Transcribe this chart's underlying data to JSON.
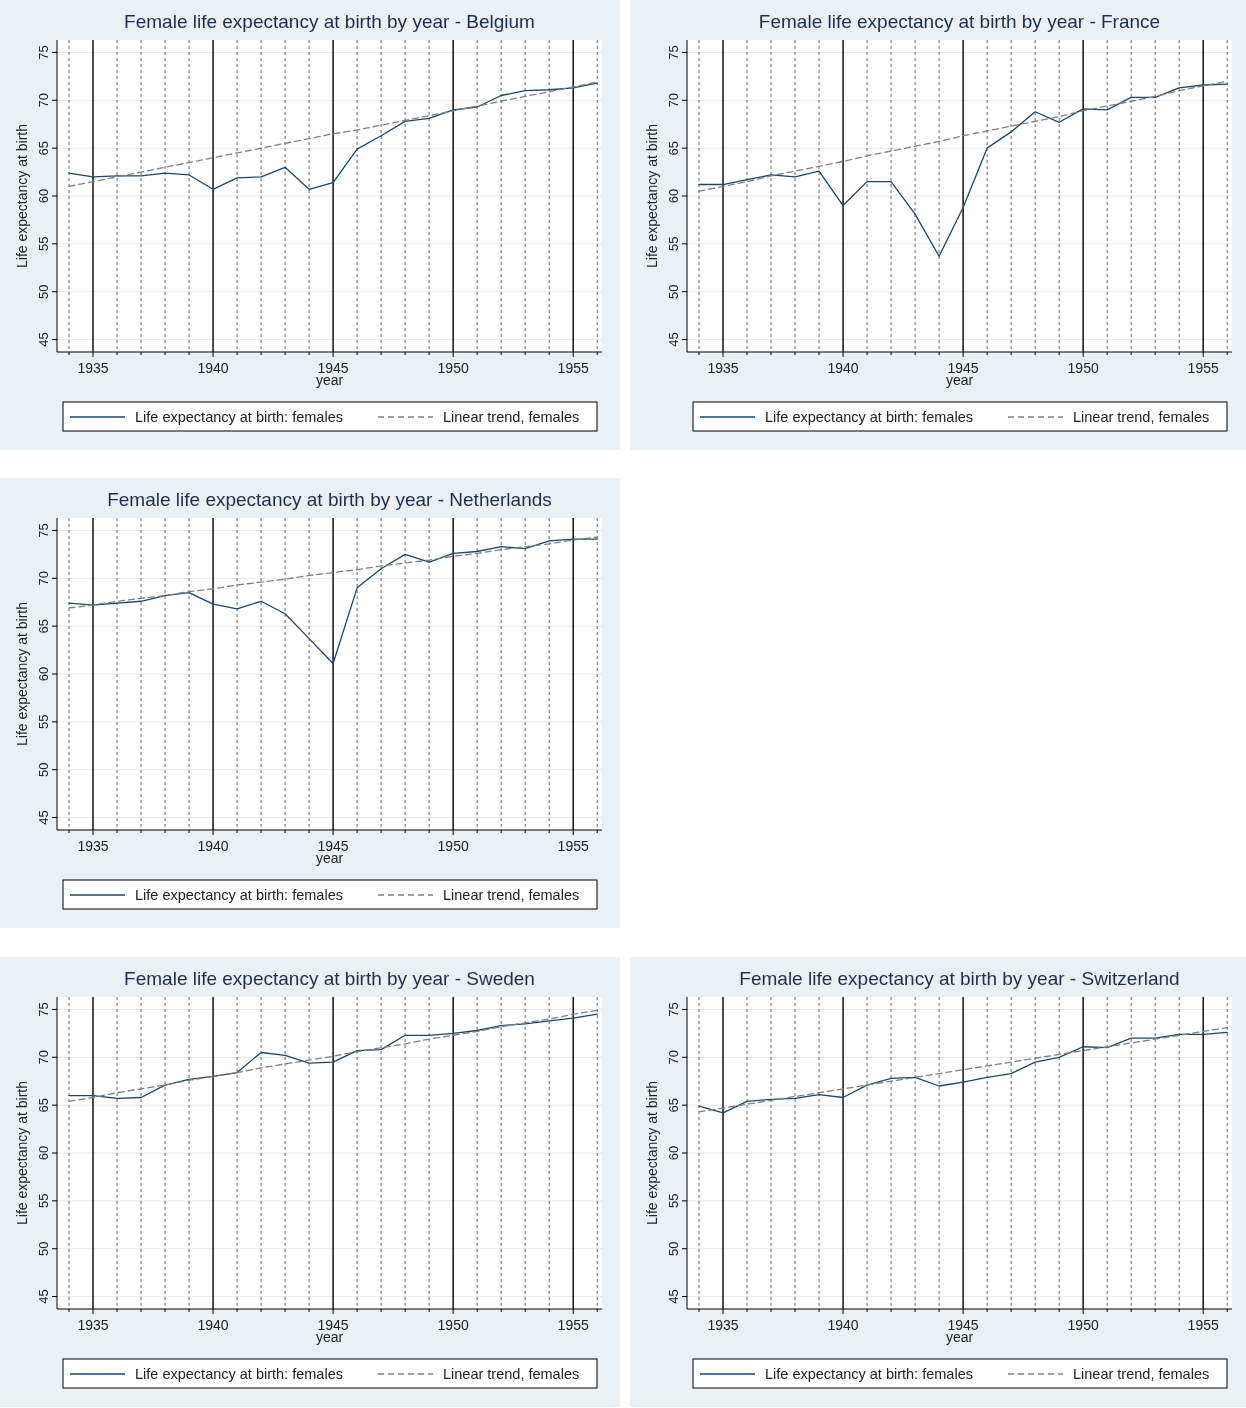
{
  "chart_data": [
    {
      "type": "line",
      "title": "Female life expectancy at birth by year - Belgium",
      "xlabel": "year",
      "ylabel": "Life expectancy at birth",
      "x": [
        1934,
        1935,
        1936,
        1937,
        1938,
        1939,
        1940,
        1941,
        1942,
        1943,
        1944,
        1945,
        1946,
        1947,
        1948,
        1949,
        1950,
        1951,
        1952,
        1953,
        1954,
        1955,
        1956
      ],
      "series": [
        {
          "name": "Life expectancy at birth: females",
          "color": "#1a476f",
          "values": [
            62.4,
            62.0,
            62.1,
            62.1,
            62.4,
            62.2,
            60.7,
            61.9,
            62.0,
            63.0,
            60.7,
            61.4,
            64.9,
            66.3,
            67.8,
            68.1,
            69.0,
            69.3,
            70.5,
            71.0,
            71.1,
            71.3,
            71.8
          ]
        },
        {
          "name": "Linear trend, females",
          "color": "#808080",
          "line_style": "dashed",
          "values": [
            61.0,
            61.5,
            62.0,
            62.5,
            63.0,
            63.5,
            64.0,
            64.5,
            65.0,
            65.5,
            66.0,
            66.5,
            66.9,
            67.4,
            67.9,
            68.4,
            68.9,
            69.4,
            69.9,
            70.4,
            70.9,
            71.4,
            71.9
          ]
        }
      ],
      "xlim": [
        1933.5,
        1956.2
      ],
      "ylim": [
        43.7,
        76.3
      ],
      "xticks": [
        {
          "value": 1934,
          "label": null
        },
        1935,
        {
          "value": 1936,
          "label": null
        },
        {
          "value": 1937,
          "label": null
        },
        {
          "value": 1938,
          "label": null
        },
        {
          "value": 1939,
          "label": null
        },
        1940,
        {
          "value": 1941,
          "label": null
        },
        {
          "value": 1942,
          "label": null
        },
        {
          "value": 1943,
          "label": null
        },
        {
          "value": 1944,
          "label": null
        },
        1945,
        {
          "value": 1946,
          "label": null
        },
        {
          "value": 1947,
          "label": null
        },
        {
          "value": 1948,
          "label": null
        },
        {
          "value": 1949,
          "label": null
        },
        1950,
        {
          "value": 1951,
          "label": null
        },
        {
          "value": 1952,
          "label": null
        },
        {
          "value": 1953,
          "label": null
        },
        {
          "value": 1954,
          "label": null
        },
        1955,
        {
          "value": 1956,
          "label": null
        }
      ],
      "yticks": [
        45,
        50,
        55,
        60,
        65,
        70,
        75
      ],
      "grid": true,
      "legend": "bottom"
    },
    {
      "type": "line",
      "title": "Female life expectancy at birth by year - France",
      "xlabel": "year",
      "ylabel": "Life expectancy at birth",
      "x": [
        1934,
        1935,
        1936,
        1937,
        1938,
        1939,
        1940,
        1941,
        1942,
        1943,
        1944,
        1945,
        1946,
        1947,
        1948,
        1949,
        1950,
        1951,
        1952,
        1953,
        1954,
        1955,
        1956
      ],
      "series": [
        {
          "name": "Life expectancy at birth: females",
          "color": "#1a476f",
          "values": [
            61.2,
            61.2,
            61.7,
            62.2,
            62.0,
            62.6,
            59.0,
            61.5,
            61.5,
            58.1,
            53.7,
            58.8,
            65.0,
            66.7,
            68.8,
            67.7,
            69.1,
            69.0,
            70.3,
            70.3,
            71.3,
            71.6,
            71.7
          ]
        },
        {
          "name": "Linear trend, females",
          "color": "#808080",
          "line_style": "dashed",
          "values": [
            60.5,
            61.0,
            61.5,
            62.1,
            62.6,
            63.1,
            63.6,
            64.2,
            64.7,
            65.2,
            65.7,
            66.3,
            66.8,
            67.3,
            67.8,
            68.3,
            68.9,
            69.4,
            69.9,
            70.4,
            71.0,
            71.5,
            72.0
          ]
        }
      ],
      "xlim": [
        1933.5,
        1956.2
      ],
      "ylim": [
        43.7,
        76.3
      ],
      "xticks": [
        {
          "value": 1934,
          "label": null
        },
        1935,
        {
          "value": 1936,
          "label": null
        },
        {
          "value": 1937,
          "label": null
        },
        {
          "value": 1938,
          "label": null
        },
        {
          "value": 1939,
          "label": null
        },
        1940,
        {
          "value": 1941,
          "label": null
        },
        {
          "value": 1942,
          "label": null
        },
        {
          "value": 1943,
          "label": null
        },
        {
          "value": 1944,
          "label": null
        },
        1945,
        {
          "value": 1946,
          "label": null
        },
        {
          "value": 1947,
          "label": null
        },
        {
          "value": 1948,
          "label": null
        },
        {
          "value": 1949,
          "label": null
        },
        1950,
        {
          "value": 1951,
          "label": null
        },
        {
          "value": 1952,
          "label": null
        },
        {
          "value": 1953,
          "label": null
        },
        {
          "value": 1954,
          "label": null
        },
        1955,
        {
          "value": 1956,
          "label": null
        }
      ],
      "yticks": [
        45,
        50,
        55,
        60,
        65,
        70,
        75
      ],
      "grid": true,
      "legend": "bottom"
    },
    {
      "type": "line",
      "title": "Female life expectancy at birth by year - Netherlands",
      "xlabel": "year",
      "ylabel": "Life expectancy at birth",
      "x": [
        1934,
        1935,
        1936,
        1937,
        1938,
        1939,
        1940,
        1941,
        1942,
        1943,
        1944,
        1945,
        1946,
        1947,
        1948,
        1949,
        1950,
        1951,
        1952,
        1953,
        1954,
        1955,
        1956
      ],
      "series": [
        {
          "name": "Life expectancy at birth: females",
          "color": "#1a476f",
          "values": [
            67.4,
            67.2,
            67.4,
            67.6,
            68.2,
            68.5,
            67.3,
            66.8,
            67.6,
            66.3,
            63.7,
            61.1,
            69.0,
            71.0,
            72.5,
            71.7,
            72.6,
            72.8,
            73.3,
            73.1,
            73.9,
            74.1,
            74.1
          ]
        },
        {
          "name": "Linear trend, females",
          "color": "#808080",
          "line_style": "dashed",
          "values": [
            66.9,
            67.2,
            67.6,
            67.9,
            68.2,
            68.6,
            68.9,
            69.3,
            69.6,
            69.9,
            70.3,
            70.6,
            70.9,
            71.3,
            71.6,
            71.9,
            72.3,
            72.6,
            73.0,
            73.3,
            73.6,
            74.0,
            74.3
          ]
        }
      ],
      "xlim": [
        1933.5,
        1956.2
      ],
      "ylim": [
        43.7,
        76.3
      ],
      "xticks": [
        {
          "value": 1934,
          "label": null
        },
        1935,
        {
          "value": 1936,
          "label": null
        },
        {
          "value": 1937,
          "label": null
        },
        {
          "value": 1938,
          "label": null
        },
        {
          "value": 1939,
          "label": null
        },
        1940,
        {
          "value": 1941,
          "label": null
        },
        {
          "value": 1942,
          "label": null
        },
        {
          "value": 1943,
          "label": null
        },
        {
          "value": 1944,
          "label": null
        },
        1945,
        {
          "value": 1946,
          "label": null
        },
        {
          "value": 1947,
          "label": null
        },
        {
          "value": 1948,
          "label": null
        },
        {
          "value": 1949,
          "label": null
        },
        1950,
        {
          "value": 1951,
          "label": null
        },
        {
          "value": 1952,
          "label": null
        },
        {
          "value": 1953,
          "label": null
        },
        {
          "value": 1954,
          "label": null
        },
        1955,
        {
          "value": 1956,
          "label": null
        }
      ],
      "yticks": [
        45,
        50,
        55,
        60,
        65,
        70,
        75
      ],
      "grid": true,
      "legend": "bottom"
    },
    {
      "type": "line",
      "title": "Female life expectancy at birth by year - Sweden",
      "xlabel": "year",
      "ylabel": "Life expectancy at birth",
      "x": [
        1934,
        1935,
        1936,
        1937,
        1938,
        1939,
        1940,
        1941,
        1942,
        1943,
        1944,
        1945,
        1946,
        1947,
        1948,
        1949,
        1950,
        1951,
        1952,
        1953,
        1954,
        1955,
        1956
      ],
      "series": [
        {
          "name": "Life expectancy at birth: females",
          "color": "#1a476f",
          "values": [
            66.0,
            66.0,
            65.7,
            65.8,
            67.1,
            67.7,
            68.0,
            68.4,
            70.5,
            70.2,
            69.4,
            69.5,
            70.7,
            70.8,
            72.3,
            72.3,
            72.5,
            72.8,
            73.3,
            73.5,
            73.8,
            74.1,
            74.5
          ]
        },
        {
          "name": "Linear trend, females",
          "color": "#808080",
          "line_style": "dashed",
          "values": [
            65.4,
            65.8,
            66.3,
            66.7,
            67.1,
            67.6,
            68.0,
            68.4,
            68.9,
            69.3,
            69.7,
            70.1,
            70.6,
            71.0,
            71.4,
            71.9,
            72.3,
            72.7,
            73.2,
            73.6,
            74.0,
            74.5,
            74.9
          ]
        }
      ],
      "xlim": [
        1933.5,
        1956.2
      ],
      "ylim": [
        43.7,
        76.3
      ],
      "xticks": [
        {
          "value": 1934,
          "label": null
        },
        1935,
        {
          "value": 1936,
          "label": null
        },
        {
          "value": 1937,
          "label": null
        },
        {
          "value": 1938,
          "label": null
        },
        {
          "value": 1939,
          "label": null
        },
        1940,
        {
          "value": 1941,
          "label": null
        },
        {
          "value": 1942,
          "label": null
        },
        {
          "value": 1943,
          "label": null
        },
        {
          "value": 1944,
          "label": null
        },
        1945,
        {
          "value": 1946,
          "label": null
        },
        {
          "value": 1947,
          "label": null
        },
        {
          "value": 1948,
          "label": null
        },
        {
          "value": 1949,
          "label": null
        },
        1950,
        {
          "value": 1951,
          "label": null
        },
        {
          "value": 1952,
          "label": null
        },
        {
          "value": 1953,
          "label": null
        },
        {
          "value": 1954,
          "label": null
        },
        1955,
        {
          "value": 1956,
          "label": null
        }
      ],
      "yticks": [
        45,
        50,
        55,
        60,
        65,
        70,
        75
      ],
      "grid": true,
      "legend": "bottom"
    },
    {
      "type": "line",
      "title": "Female life expectancy at birth by year - Switzerland",
      "xlabel": "year",
      "ylabel": "Life expectancy at birth",
      "x": [
        1934,
        1935,
        1936,
        1937,
        1938,
        1939,
        1940,
        1941,
        1942,
        1943,
        1944,
        1945,
        1946,
        1947,
        1948,
        1949,
        1950,
        1951,
        1952,
        1953,
        1954,
        1955,
        1956
      ],
      "series": [
        {
          "name": "Life expectancy at birth: females",
          "color": "#1a476f",
          "values": [
            64.9,
            64.2,
            65.4,
            65.6,
            65.7,
            66.1,
            65.8,
            67.1,
            67.8,
            67.9,
            67.0,
            67.4,
            67.9,
            68.3,
            69.5,
            70.0,
            71.1,
            71.0,
            72.0,
            72.0,
            72.4,
            72.4,
            72.6
          ]
        },
        {
          "name": "Linear trend, females",
          "color": "#808080",
          "line_style": "dashed",
          "values": [
            64.3,
            64.7,
            65.1,
            65.5,
            65.9,
            66.3,
            66.7,
            67.1,
            67.5,
            67.9,
            68.3,
            68.7,
            69.1,
            69.5,
            69.9,
            70.3,
            70.7,
            71.1,
            71.5,
            71.9,
            72.3,
            72.7,
            73.1
          ]
        }
      ],
      "xlim": [
        1933.5,
        1956.2
      ],
      "ylim": [
        43.7,
        76.3
      ],
      "xticks": [
        {
          "value": 1934,
          "label": null
        },
        1935,
        {
          "value": 1936,
          "label": null
        },
        {
          "value": 1937,
          "label": null
        },
        {
          "value": 1938,
          "label": null
        },
        {
          "value": 1939,
          "label": null
        },
        1940,
        {
          "value": 1941,
          "label": null
        },
        {
          "value": 1942,
          "label": null
        },
        {
          "value": 1943,
          "label": null
        },
        {
          "value": 1944,
          "label": null
        },
        1945,
        {
          "value": 1946,
          "label": null
        },
        {
          "value": 1947,
          "label": null
        },
        {
          "value": 1948,
          "label": null
        },
        {
          "value": 1949,
          "label": null
        },
        1950,
        {
          "value": 1951,
          "label": null
        },
        {
          "value": 1952,
          "label": null
        },
        {
          "value": 1953,
          "label": null
        },
        {
          "value": 1954,
          "label": null
        },
        1955,
        {
          "value": 1956,
          "label": null
        }
      ],
      "yticks": [
        45,
        50,
        55,
        60,
        65,
        70,
        75
      ],
      "grid": true,
      "legend": "bottom"
    }
  ]
}
